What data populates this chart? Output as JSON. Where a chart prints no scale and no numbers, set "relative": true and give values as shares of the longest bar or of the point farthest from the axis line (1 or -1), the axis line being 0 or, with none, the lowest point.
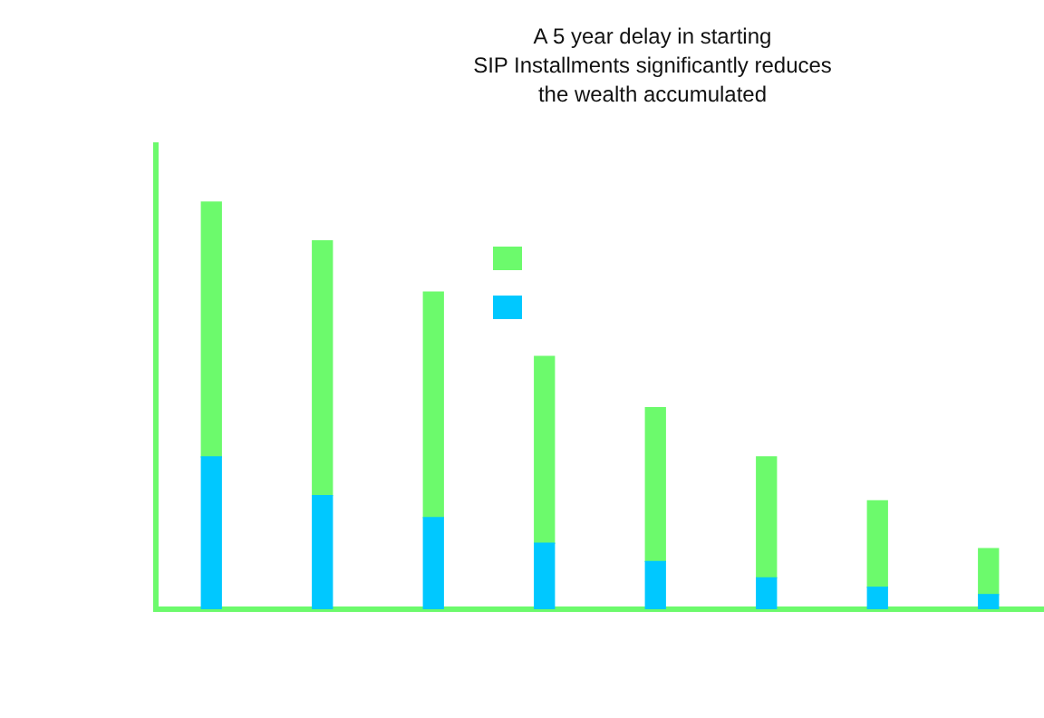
{
  "chart_data": {
    "type": "bar",
    "title": "A 5 year delay in starting\nSIP Installments significantly reduces\nthe wealth accumulated",
    "relative": true,
    "stacked": true,
    "categories": [
      null,
      null,
      null,
      null,
      null,
      null,
      null,
      null
    ],
    "series": [
      {
        "color": "#00c8ff",
        "values": [
          0.374,
          0.279,
          0.225,
          0.162,
          0.117,
          0.077,
          0.054,
          0.036
        ]
      },
      {
        "color": "#6cfa6c",
        "values": [
          0.626,
          0.626,
          0.554,
          0.459,
          0.378,
          0.297,
          0.212,
          0.113
        ]
      }
    ]
  }
}
